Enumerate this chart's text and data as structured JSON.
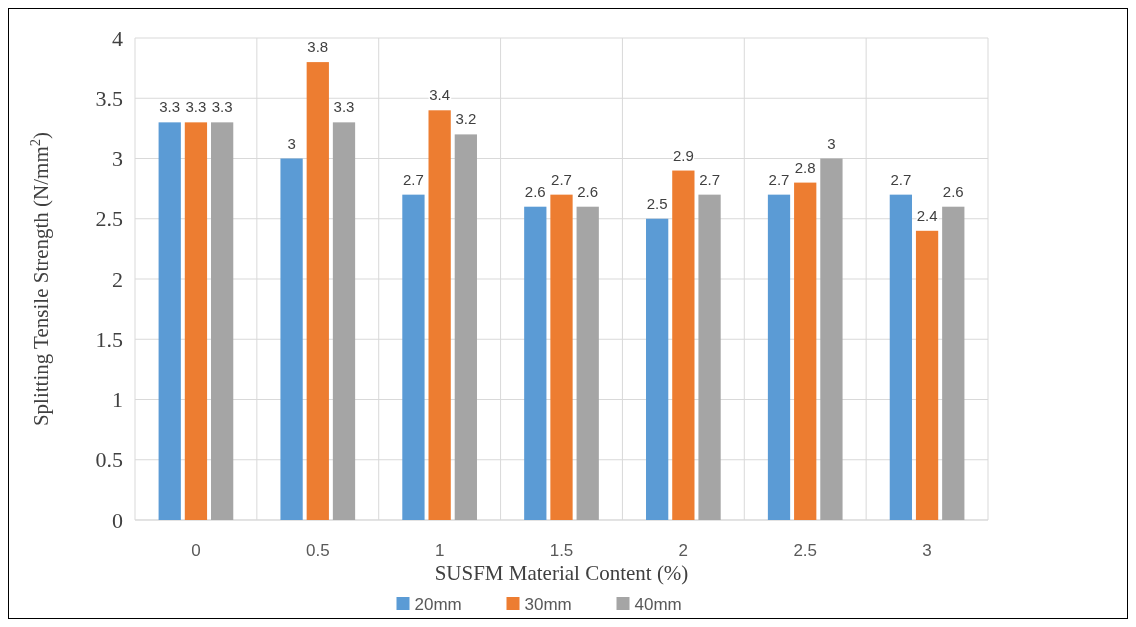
{
  "chart_data": {
    "type": "bar",
    "xlabel": "SUSFM Material Content (%)",
    "ylabel": "Splitting Tensile Strength (N/mm$^{2}$)",
    "categories": [
      "0",
      "0.5",
      "1",
      "1.5",
      "2",
      "2.5",
      "3"
    ],
    "series": [
      {
        "name": "20mm",
        "color": "#5b9bd5",
        "values": [
          3.3,
          3,
          2.7,
          2.6,
          2.5,
          2.7,
          2.7
        ]
      },
      {
        "name": "30mm",
        "color": "#ed7d31",
        "values": [
          3.3,
          3.8,
          3.4,
          2.7,
          2.9,
          2.8,
          2.4
        ]
      },
      {
        "name": "40mm",
        "color": "#a5a5a5",
        "values": [
          3.3,
          3.3,
          3.2,
          2.6,
          2.7,
          3,
          2.6
        ]
      }
    ],
    "ylim": [
      0,
      4
    ],
    "yticks": [
      0,
      0.5,
      1,
      1.5,
      2,
      2.5,
      3,
      3.5,
      4
    ],
    "grid": true,
    "data_labels": true,
    "legend": "bottom"
  }
}
